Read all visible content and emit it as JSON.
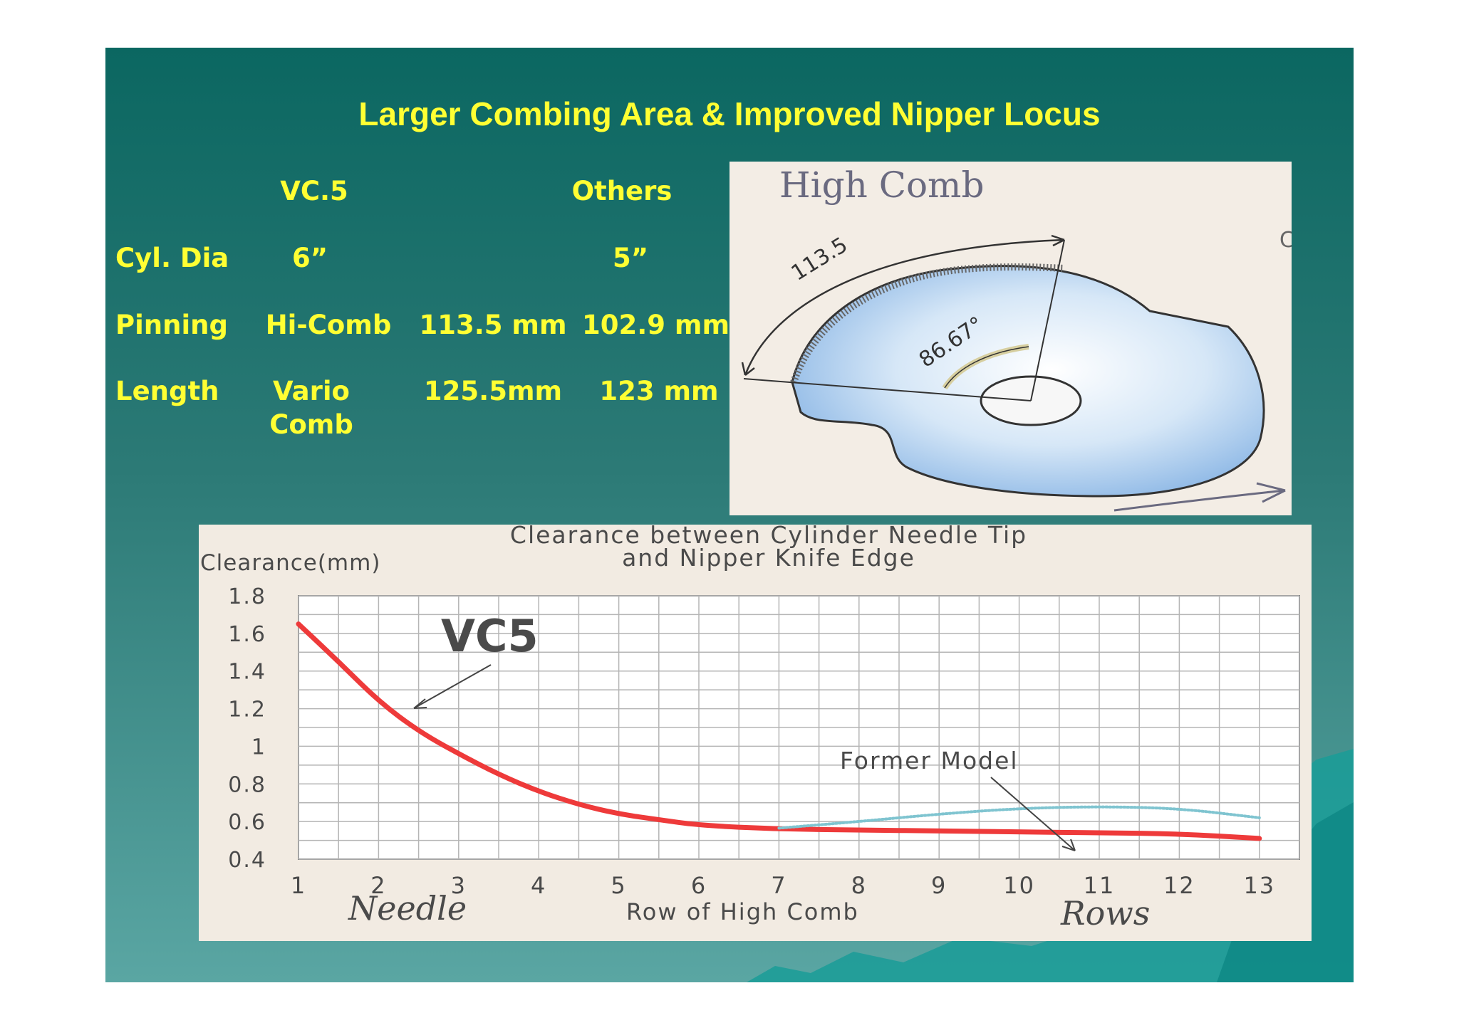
{
  "slide": {
    "title": "Larger Combing Area & Improved Nipper Locus",
    "colors": {
      "background_top": "#0b6761",
      "background_bottom": "#5aa6a3",
      "text": "#ffff33"
    }
  },
  "specs": {
    "header_vc5": "VC.5",
    "header_others": "Others",
    "row_cyl_label": "Cyl. Dia",
    "row_cyl_vc5": "6”",
    "row_cyl_others": "5”",
    "row_pin_label": "Pinning",
    "row_pin_vc5_name": "Hi-Comb",
    "row_pin_vc5_value": "113.5 mm",
    "row_pin_others": "102.9 mm",
    "row_len_label": "Length",
    "row_len_vc5_name_1": "Vario",
    "row_len_vc5_name_2": "Comb",
    "row_len_vc5_value": "125.5mm",
    "row_len_others": "123 mm"
  },
  "comb_diagram": {
    "caption": "High Comb",
    "arc_length_label": "113.5",
    "angle_label": "86.67°",
    "corner_mark": "C",
    "fill_color": "#a8cbee"
  },
  "chart_data": {
    "type": "line",
    "title": "Clearance between Cylinder Needle Tip and Nipper Knife Edge",
    "title_line1": "Clearance between Cylinder Needle Tip",
    "title_line2": "and Nipper Knife Edge",
    "ylabel": "Clearance(mm)",
    "xlabel": "Row of High Comb",
    "xlabel_handwritten_left": "Needle",
    "xlabel_handwritten_right": "Rows",
    "x": [
      1,
      2,
      3,
      4,
      5,
      6,
      7,
      8,
      9,
      10,
      11,
      12,
      13
    ],
    "x_tick_labels": [
      "1",
      "2",
      "3",
      "4",
      "5",
      "6",
      "7",
      "8",
      "9",
      "10",
      "11",
      "12",
      "13"
    ],
    "y_tick_labels": [
      "1.8",
      "1.6",
      "1.4",
      "1.2",
      "1",
      "0.8",
      "0.6",
      "0.4"
    ],
    "y_ticks": [
      1.8,
      1.6,
      1.4,
      1.2,
      1.0,
      0.8,
      0.6,
      0.4
    ],
    "xlim": [
      1,
      13.5
    ],
    "ylim": [
      0.4,
      1.8
    ],
    "grid": true,
    "series": [
      {
        "name": "VC5",
        "color": "#ee3a3a",
        "style": "solid",
        "x": [
          1,
          1.5,
          2,
          2.5,
          3,
          3.5,
          4,
          4.5,
          5,
          5.5,
          6,
          7,
          8,
          9,
          10,
          11,
          12,
          13
        ],
        "values": [
          1.65,
          1.45,
          1.24,
          1.08,
          0.96,
          0.85,
          0.76,
          0.69,
          0.64,
          0.61,
          0.58,
          0.56,
          0.555,
          0.55,
          0.545,
          0.54,
          0.535,
          0.51
        ]
      },
      {
        "name": "Former Model",
        "color": "#7fc4d0",
        "style": "dotted",
        "x": [
          7,
          8,
          9,
          10,
          11,
          12,
          13
        ],
        "values": [
          0.565,
          0.6,
          0.64,
          0.67,
          0.68,
          0.67,
          0.62
        ]
      }
    ]
  }
}
